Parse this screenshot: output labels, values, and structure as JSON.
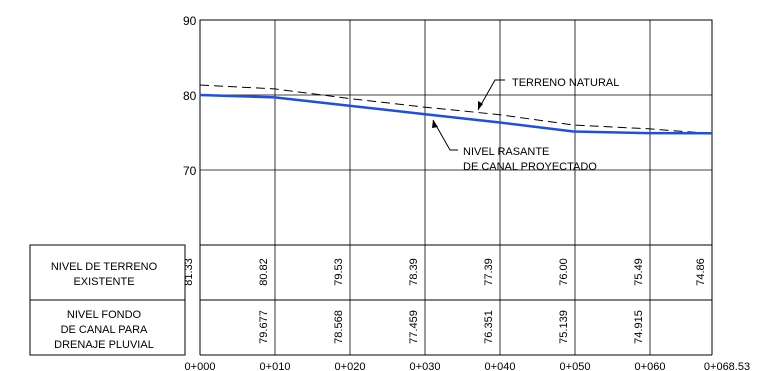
{
  "chart_data": {
    "type": "line",
    "x_stations": [
      0,
      10,
      20,
      30,
      40,
      50,
      60,
      68.53
    ],
    "x_tick_labels": [
      "0+000",
      "0+010",
      "0+020",
      "0+030",
      "0+040",
      "0+050",
      "0+060",
      "0+068.53"
    ],
    "y_tick_labels": [
      "90",
      "80",
      "70"
    ],
    "ylim": [
      70,
      90
    ],
    "grid": true,
    "series": [
      {
        "name": "TERRENO NATURAL",
        "style": "dashed",
        "color": "#000000",
        "x": [
          0,
          10,
          20,
          30,
          40,
          50,
          60,
          68.53
        ],
        "y": [
          81.33,
          80.82,
          79.53,
          78.39,
          77.39,
          76.0,
          75.49,
          74.86
        ]
      },
      {
        "name": "NIVEL RASANTE DE CANAL PROYECTADO",
        "style": "solid",
        "color": "#1f4fe0",
        "x": [
          0,
          10,
          20,
          30,
          40,
          50,
          60,
          68.53
        ],
        "y": [
          80.0,
          79.677,
          78.568,
          77.459,
          76.351,
          75.139,
          74.915,
          74.9
        ]
      }
    ],
    "annotations": {
      "terreno": "TERRENO  NATURAL",
      "rasante_line1": "NIVEL  RASANTE",
      "rasante_line2": "DE  CANAL  PROYECTADO"
    },
    "table": {
      "row1_label_line1": "NIVEL  DE  TERRENO",
      "row1_label_line2": "EXISTENTE",
      "row1_values": [
        "81.33",
        "80.82",
        "79.53",
        "78.39",
        "77.39",
        "76.00",
        "75.49",
        "74.86"
      ],
      "row2_label_line1": "NIVEL  FONDO",
      "row2_label_line2": "DE  CANAL  PARA",
      "row2_label_line3": "DRENAJE  PLUVIAL",
      "row2_values": [
        "",
        "79.677",
        "78.568",
        "77.459",
        "76.351",
        "75.139",
        "74.915",
        ""
      ]
    }
  }
}
